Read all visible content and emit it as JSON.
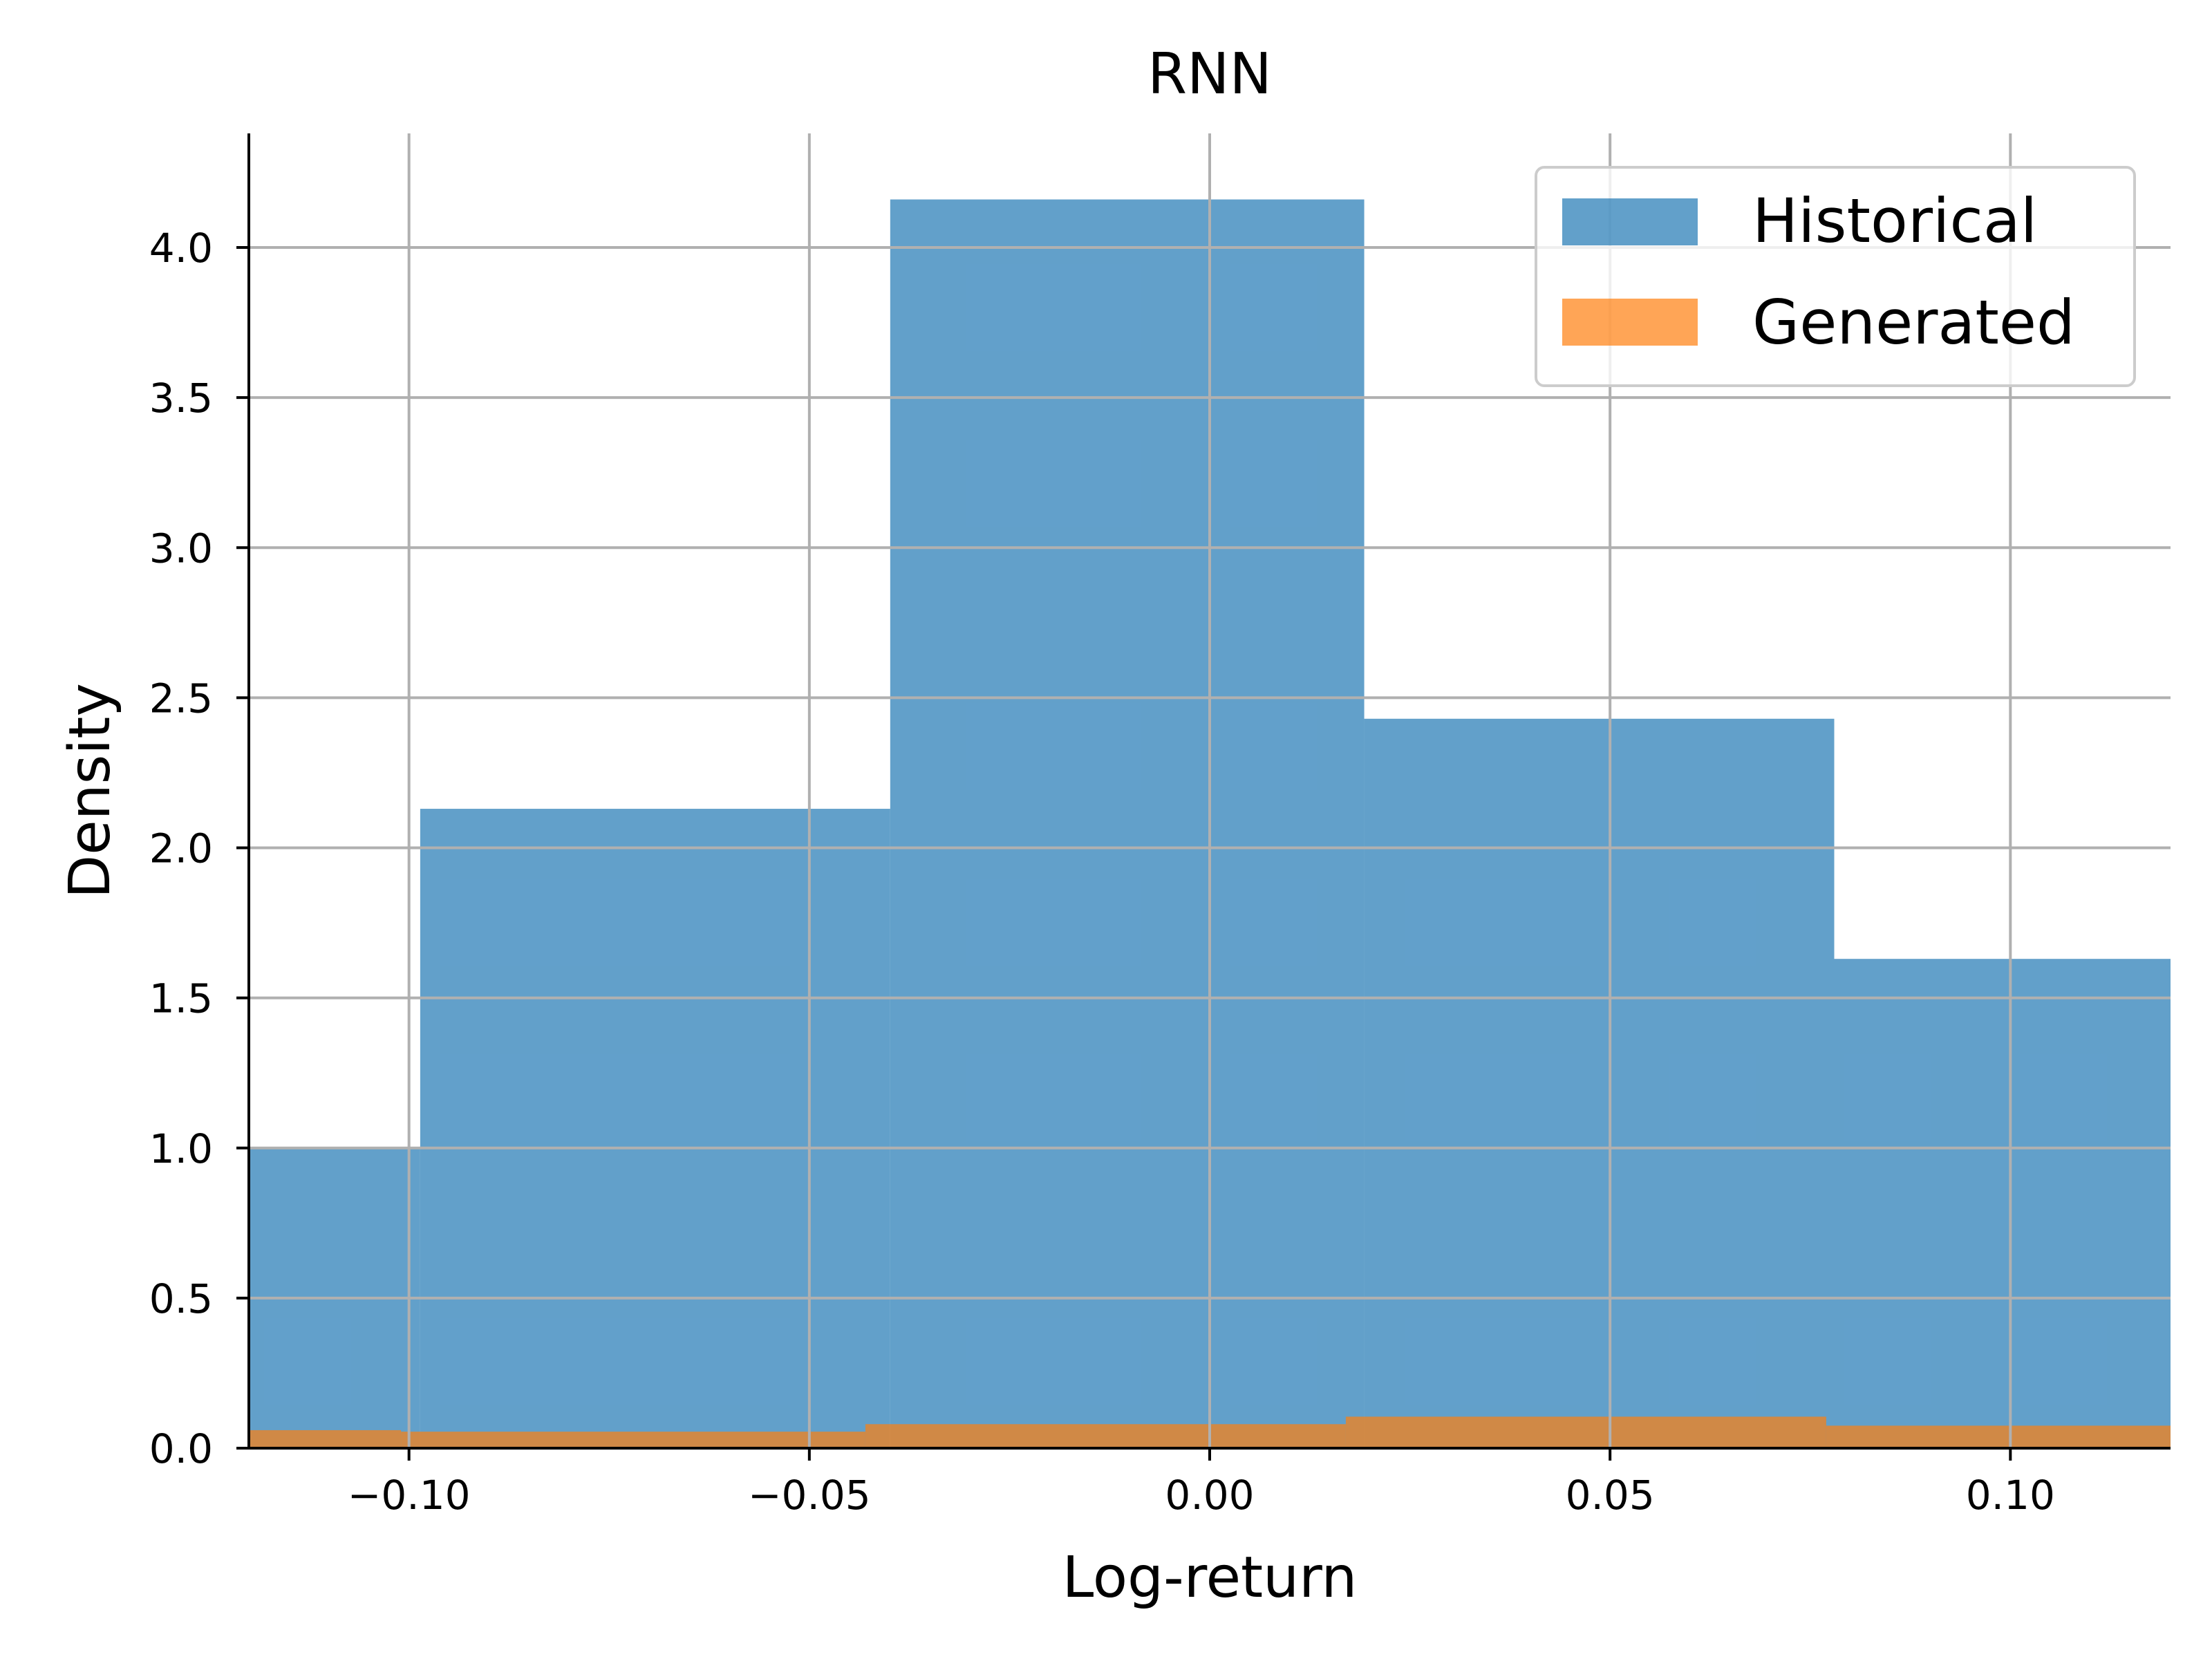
{
  "chart_data": {
    "type": "bar",
    "title": "RNN",
    "xlabel": "Log-return",
    "ylabel": "Density",
    "xlim": [
      -0.12,
      0.12
    ],
    "ylim": [
      0,
      4.38
    ],
    "xticks": [
      -0.1,
      -0.05,
      0.0,
      0.05,
      0.1
    ],
    "xtick_labels": [
      "−0.10",
      "−0.05",
      "0.00",
      "0.05",
      "0.10"
    ],
    "yticks": [
      0.0,
      0.5,
      1.0,
      1.5,
      2.0,
      2.5,
      3.0,
      3.5,
      4.0
    ],
    "ytick_labels": [
      "0.0",
      "0.5",
      "1.0",
      "1.5",
      "2.0",
      "2.5",
      "3.0",
      "3.5",
      "4.0"
    ],
    "grid": true,
    "legend_position": "top-right",
    "series": [
      {
        "name": "Historical",
        "color": "#1f77b4",
        "opacity": 0.7,
        "bins": [
          {
            "x0": -0.157,
            "x1": -0.0986,
            "value": 1.0
          },
          {
            "x0": -0.0986,
            "x1": -0.0399,
            "value": 2.13
          },
          {
            "x0": -0.0399,
            "x1": 0.0193,
            "value": 4.16
          },
          {
            "x0": 0.0193,
            "x1": 0.078,
            "value": 2.43
          },
          {
            "x0": 0.078,
            "x1": 0.137,
            "value": 1.63
          }
        ]
      },
      {
        "name": "Generated",
        "color": "#ff7f0e",
        "opacity": 0.7,
        "bins": [
          {
            "x0": -0.16,
            "x1": -0.101,
            "value": 0.06
          },
          {
            "x0": -0.101,
            "x1": -0.043,
            "value": 0.055
          },
          {
            "x0": -0.043,
            "x1": 0.017,
            "value": 0.08
          },
          {
            "x0": 0.017,
            "x1": 0.077,
            "value": 0.105
          },
          {
            "x0": 0.077,
            "x1": 0.137,
            "value": 0.075
          }
        ]
      }
    ]
  }
}
